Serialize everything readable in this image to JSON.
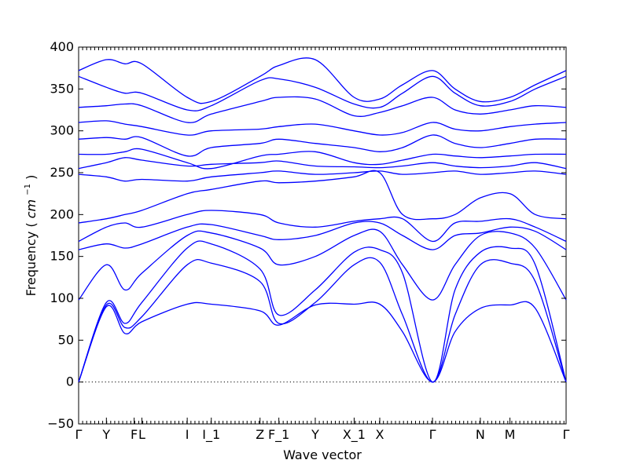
{
  "chart_data": {
    "type": "line",
    "xlabel": "Wave vector",
    "ylabel_text": "Frequency (",
    "ylabel_unit": "cm",
    "ylabel_exp": "−1",
    "ylabel_close": ")",
    "ylim": [
      -50,
      400
    ],
    "yticks": [
      -50,
      0,
      50,
      100,
      150,
      200,
      250,
      300,
      350,
      400
    ],
    "xlim": [
      0,
      15.8
    ],
    "high_symmetry_points": [
      {
        "label": "Γ",
        "x": 0.0
      },
      {
        "label": "Y",
        "x": 0.9
      },
      {
        "label": "F",
        "x": 1.8
      },
      {
        "label": "L",
        "x": 2.05
      },
      {
        "label": "I",
        "x": 3.52
      },
      {
        "label": "I_1",
        "x": 4.3
      },
      {
        "label": "Z",
        "x": 5.88
      },
      {
        "label": "F_1",
        "x": 6.49
      },
      {
        "label": "Y",
        "x": 7.67
      },
      {
        "label": "X_1",
        "x": 8.93
      },
      {
        "label": "X",
        "x": 9.76
      },
      {
        "label": "Γ",
        "x": 11.47
      },
      {
        "label": "N",
        "x": 13.02
      },
      {
        "label": "M",
        "x": 13.98
      },
      {
        "label": "Γ",
        "x": 15.8
      }
    ],
    "line_color": "#0000ff",
    "zero_line": true,
    "grid": false,
    "legend": "none",
    "series": [
      {
        "x": [
          0,
          0.9,
          1.5,
          2.05,
          3.52,
          4.3,
          5.88,
          6.49,
          7.67,
          8.93,
          9.76,
          10.5,
          11.47,
          12.2,
          13.02,
          13.98,
          14.8,
          15.8
        ],
        "y": [
          0,
          90,
          58,
          72,
          93,
          93,
          85,
          68,
          92,
          93,
          93,
          60,
          0,
          60,
          88,
          92,
          88,
          0
        ]
      },
      {
        "x": [
          0,
          0.9,
          1.5,
          2.05,
          3.52,
          4.3,
          5.88,
          6.49,
          7.67,
          8.93,
          9.76,
          10.5,
          11.47,
          12.2,
          13.02,
          13.98,
          14.8,
          15.8
        ],
        "y": [
          0,
          92,
          65,
          78,
          140,
          142,
          120,
          70,
          95,
          140,
          143,
          80,
          0,
          80,
          140,
          142,
          120,
          0
        ]
      },
      {
        "x": [
          0,
          0.9,
          1.5,
          2.05,
          3.52,
          4.3,
          5.88,
          6.49,
          7.67,
          8.93,
          9.76,
          10.5,
          11.47,
          12.2,
          13.02,
          13.98,
          14.8,
          15.8
        ],
        "y": [
          0,
          95,
          70,
          95,
          160,
          165,
          135,
          80,
          110,
          155,
          158,
          130,
          0,
          110,
          155,
          160,
          140,
          0
        ]
      },
      {
        "x": [
          0,
          0.9,
          1.5,
          2.05,
          3.52,
          4.3,
          5.88,
          6.49,
          7.67,
          8.93,
          9.76,
          10.5,
          11.47,
          12.2,
          13.02,
          13.98,
          14.8,
          15.8
        ],
        "y": [
          98,
          140,
          110,
          130,
          175,
          178,
          160,
          140,
          150,
          175,
          180,
          140,
          98,
          140,
          175,
          178,
          160,
          98
        ]
      },
      {
        "x": [
          0,
          0.9,
          1.5,
          2.05,
          3.52,
          4.3,
          5.88,
          6.49,
          7.67,
          8.93,
          9.76,
          10.5,
          11.47,
          12.2,
          13.02,
          13.98,
          14.8,
          15.8
        ],
        "y": [
          158,
          165,
          160,
          165,
          185,
          188,
          175,
          170,
          175,
          190,
          190,
          175,
          158,
          175,
          178,
          185,
          180,
          158
        ]
      },
      {
        "x": [
          0,
          0.9,
          1.5,
          2.05,
          3.52,
          4.3,
          5.88,
          6.49,
          7.67,
          8.93,
          9.76,
          10.5,
          11.47,
          12.2,
          13.02,
          13.98,
          14.8,
          15.8
        ],
        "y": [
          168,
          185,
          190,
          185,
          200,
          205,
          200,
          190,
          185,
          192,
          195,
          195,
          168,
          190,
          192,
          195,
          185,
          168
        ]
      },
      {
        "x": [
          0,
          0.9,
          1.5,
          2.05,
          3.52,
          4.3,
          5.88,
          6.49,
          7.67,
          8.93,
          9.76,
          10.5,
          11.47,
          12.2,
          13.02,
          13.98,
          14.8,
          15.8
        ],
        "y": [
          190,
          195,
          200,
          205,
          225,
          230,
          240,
          238,
          240,
          245,
          250,
          200,
          195,
          200,
          220,
          225,
          200,
          195
        ]
      },
      {
        "x": [
          0,
          0.9,
          1.5,
          2.05,
          3.52,
          4.3,
          5.88,
          6.49,
          7.67,
          8.93,
          9.76,
          10.5,
          11.47,
          12.2,
          13.02,
          13.98,
          14.8,
          15.8
        ],
        "y": [
          248,
          245,
          240,
          242,
          240,
          245,
          250,
          252,
          248,
          250,
          252,
          248,
          250,
          252,
          248,
          250,
          252,
          248
        ]
      },
      {
        "x": [
          0,
          0.9,
          1.5,
          2.05,
          3.52,
          4.3,
          5.88,
          6.49,
          7.67,
          8.93,
          9.76,
          10.5,
          11.47,
          12.2,
          13.02,
          13.98,
          14.8,
          15.8
        ],
        "y": [
          255,
          262,
          268,
          265,
          258,
          260,
          262,
          264,
          258,
          257,
          256,
          258,
          262,
          258,
          256,
          258,
          262,
          255
        ]
      },
      {
        "x": [
          0,
          0.9,
          1.5,
          2.05,
          3.52,
          4.3,
          5.88,
          6.49,
          7.67,
          8.93,
          9.76,
          10.5,
          11.47,
          12.2,
          13.02,
          13.98,
          14.8,
          15.8
        ],
        "y": [
          272,
          272,
          275,
          278,
          262,
          255,
          270,
          272,
          275,
          262,
          260,
          265,
          272,
          270,
          268,
          270,
          272,
          272
        ]
      },
      {
        "x": [
          0,
          0.9,
          1.5,
          2.05,
          3.52,
          4.3,
          5.88,
          6.49,
          7.67,
          8.93,
          9.76,
          10.5,
          11.47,
          12.2,
          13.02,
          13.98,
          14.8,
          15.8
        ],
        "y": [
          290,
          292,
          290,
          292,
          270,
          280,
          285,
          290,
          285,
          280,
          275,
          280,
          295,
          285,
          280,
          285,
          290,
          290
        ]
      },
      {
        "x": [
          0,
          0.9,
          1.5,
          2.05,
          3.52,
          4.3,
          5.88,
          6.49,
          7.67,
          8.93,
          9.76,
          10.5,
          11.47,
          12.2,
          13.02,
          13.98,
          14.8,
          15.8
        ],
        "y": [
          310,
          312,
          308,
          305,
          295,
          300,
          302,
          305,
          308,
          300,
          295,
          298,
          310,
          302,
          300,
          305,
          308,
          310
        ]
      },
      {
        "x": [
          0,
          0.9,
          1.5,
          2.05,
          3.52,
          4.3,
          5.88,
          6.49,
          7.67,
          8.93,
          9.76,
          10.5,
          11.47,
          12.2,
          13.02,
          13.98,
          14.8,
          15.8
        ],
        "y": [
          328,
          330,
          332,
          330,
          310,
          320,
          335,
          340,
          338,
          318,
          322,
          330,
          340,
          325,
          320,
          325,
          330,
          328
        ]
      },
      {
        "x": [
          0,
          0.9,
          1.5,
          2.05,
          3.52,
          4.3,
          5.88,
          6.49,
          7.67,
          8.93,
          9.76,
          10.5,
          11.47,
          12.2,
          13.02,
          13.98,
          14.8,
          15.8
        ],
        "y": [
          365,
          352,
          345,
          345,
          325,
          330,
          360,
          362,
          352,
          332,
          328,
          345,
          365,
          345,
          330,
          335,
          350,
          365
        ]
      },
      {
        "x": [
          0,
          0.9,
          1.5,
          2.05,
          3.52,
          4.3,
          5.88,
          6.49,
          7.67,
          8.93,
          9.76,
          10.5,
          11.47,
          12.2,
          13.02,
          13.98,
          14.8,
          15.8
        ],
        "y": [
          372,
          385,
          380,
          380,
          340,
          335,
          365,
          378,
          385,
          340,
          338,
          355,
          372,
          350,
          335,
          340,
          355,
          372
        ]
      }
    ]
  }
}
